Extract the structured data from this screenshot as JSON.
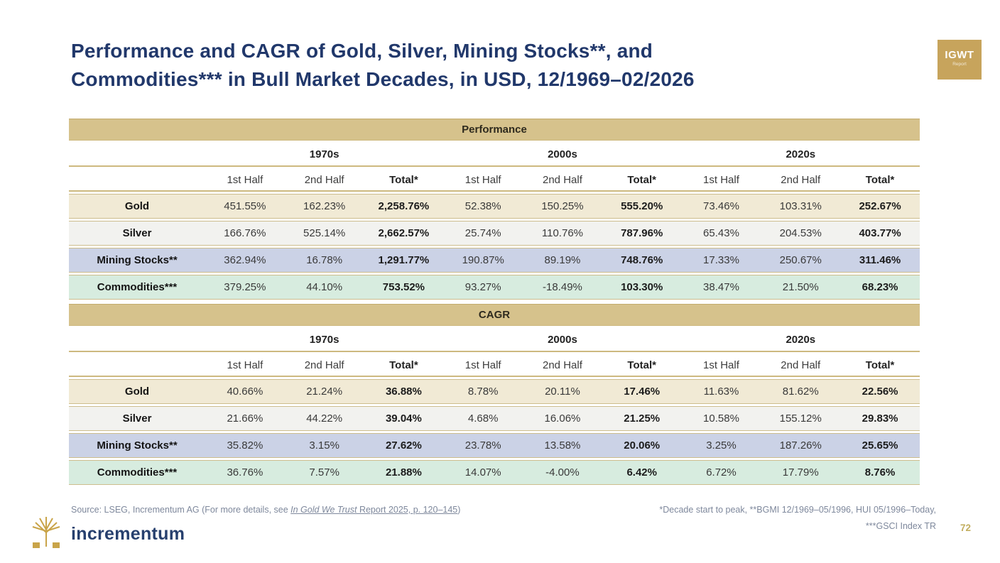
{
  "title_line1": "Performance and CAGR of Gold, Silver, Mining Stocks**, and",
  "title_line2": "Commodities*** in Bull Market Decades, in USD, 12/1969–02/2026",
  "badge": {
    "line1": "IGWT",
    "line2": "Report"
  },
  "footer": {
    "source_prefix": "Source: LSEG, Incrementum AG (For more details, see ",
    "source_link_italic": "In Gold We Trust",
    "source_link_rest": " Report 2025, p. 120–145",
    "source_suffix": ")",
    "note_line1": "*Decade start to peak, **BGMI 12/1969–05/1996, HUI 05/1996–Today,",
    "note_line2": "***GSCI Index TR",
    "brand": "incrementum",
    "page_number": "72"
  },
  "colors": {
    "band": "#d6c28c",
    "title_navy": "#21386b",
    "accent_gold": "#c7a45c",
    "row_gold": "#f1ead5",
    "row_silver": "#f2f2ef",
    "row_mining_stocks": "#cbd2e6",
    "row_commodities": "#d7ecdf"
  },
  "chart_data": [
    {
      "type": "table",
      "title": "Performance",
      "decades": [
        "1970s",
        "2000s",
        "2020s"
      ],
      "sub_columns": [
        "1st Half",
        "2nd Half",
        "Total*"
      ],
      "rows": [
        {
          "label": "Gold",
          "color": "#f1ead5",
          "values": [
            "451.55%",
            "162.23%",
            "2,258.76%",
            "52.38%",
            "150.25%",
            "555.20%",
            "73.46%",
            "103.31%",
            "252.67%"
          ]
        },
        {
          "label": "Silver",
          "color": "#f2f2ef",
          "values": [
            "166.76%",
            "525.14%",
            "2,662.57%",
            "25.74%",
            "110.76%",
            "787.96%",
            "65.43%",
            "204.53%",
            "403.77%"
          ]
        },
        {
          "label": "Mining Stocks**",
          "color": "#cbd2e6",
          "values": [
            "362.94%",
            "16.78%",
            "1,291.77%",
            "190.87%",
            "89.19%",
            "748.76%",
            "17.33%",
            "250.67%",
            "311.46%"
          ]
        },
        {
          "label": "Commodities***",
          "color": "#d7ecdf",
          "values": [
            "379.25%",
            "44.10%",
            "753.52%",
            "93.27%",
            "-18.49%",
            "103.30%",
            "38.47%",
            "21.50%",
            "68.23%"
          ]
        }
      ]
    },
    {
      "type": "table",
      "title": "CAGR",
      "decades": [
        "1970s",
        "2000s",
        "2020s"
      ],
      "sub_columns": [
        "1st Half",
        "2nd Half",
        "Total*"
      ],
      "rows": [
        {
          "label": "Gold",
          "color": "#f1ead5",
          "values": [
            "40.66%",
            "21.24%",
            "36.88%",
            "8.78%",
            "20.11%",
            "17.46%",
            "11.63%",
            "81.62%",
            "22.56%"
          ]
        },
        {
          "label": "Silver",
          "color": "#f2f2ef",
          "values": [
            "21.66%",
            "44.22%",
            "39.04%",
            "4.68%",
            "16.06%",
            "21.25%",
            "10.58%",
            "155.12%",
            "29.83%"
          ]
        },
        {
          "label": "Mining Stocks**",
          "color": "#cbd2e6",
          "values": [
            "35.82%",
            "3.15%",
            "27.62%",
            "23.78%",
            "13.58%",
            "20.06%",
            "3.25%",
            "187.26%",
            "25.65%"
          ]
        },
        {
          "label": "Commodities***",
          "color": "#d7ecdf",
          "values": [
            "36.76%",
            "7.57%",
            "21.88%",
            "14.07%",
            "-4.00%",
            "6.42%",
            "6.72%",
            "17.79%",
            "8.76%"
          ]
        }
      ]
    }
  ]
}
